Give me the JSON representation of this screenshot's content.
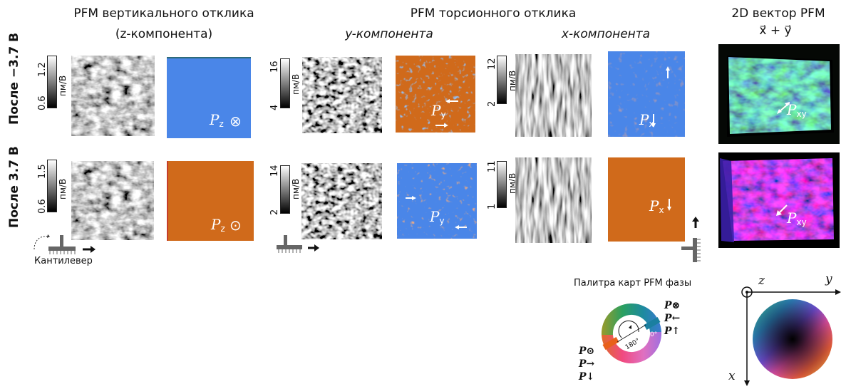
{
  "headers": {
    "vertical": "PFM вертикального отклика",
    "vertical_sub": "(z-компонента)",
    "torsion": "PFM торсионного отклика",
    "y_component": "y-компонента",
    "x_component": "x-компонента",
    "vector_title": "2D вектор PFM",
    "vector_formula": "x⃗ + y⃗"
  },
  "rows": [
    {
      "label": "После −3.7 В"
    },
    {
      "label": "После 3.7 В"
    }
  ],
  "unit": "пм/В",
  "colorbars": {
    "r1_vert": {
      "max": "1.2",
      "min": "0.6"
    },
    "r1_y": {
      "max": "16",
      "min": "4"
    },
    "r1_x": {
      "max": "12",
      "min": "2"
    },
    "r2_vert": {
      "max": "1.5",
      "min": "0.6"
    },
    "r2_y": {
      "max": "14",
      "min": "2"
    },
    "r2_x": {
      "max": "11",
      "min": "1"
    }
  },
  "phase_labels": {
    "pz": "P",
    "pz_sub": "z",
    "py": "P",
    "py_sub": "y",
    "px": "P",
    "px_sub": "x",
    "pxy": "P",
    "pxy_sub": "xy",
    "into": "⊗",
    "outof": "⊙"
  },
  "cantilever": "Кантилевер",
  "palette_title": "Палитра карт PFM фазы",
  "palette": {
    "angle_180": "180°",
    "angle_0": "0°",
    "right_labels": [
      "P⊗",
      "P←",
      "P↑"
    ],
    "left_labels": [
      "P⊙",
      "P→",
      "P↓"
    ]
  },
  "axes": {
    "z": "z",
    "y": "y",
    "x": "x"
  },
  "colors": {
    "blue_phase": "#4a86e8",
    "orange_phase": "#d06a1b",
    "red_spots": "#e8503a"
  }
}
